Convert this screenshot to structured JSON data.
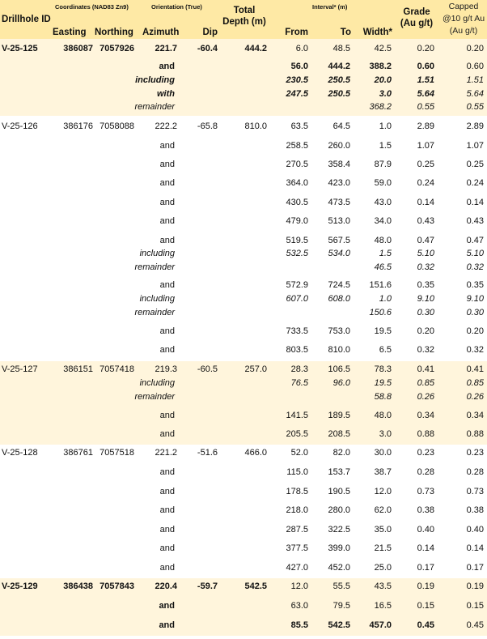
{
  "header": {
    "drillhole_id": "Drillhole ID",
    "coordinates": "Coordinates (NAD83 Zn9)",
    "orientation": "Orientation (True)",
    "total_depth_1": "Total",
    "total_depth_2": "Depth (m)",
    "interval": "Interval* (m)",
    "easting": "Easting",
    "northing": "Northing",
    "azimuth": "Azimuth",
    "dip": "Dip",
    "from": "From",
    "to": "To",
    "width": "Width*",
    "grade_1": "Grade",
    "grade_2": "(Au g/t)",
    "capped_1": "Capped",
    "capped_2": "@10 g/t Au",
    "capped_3": "(Au g/t)"
  },
  "colors": {
    "header_bg": "#fee9a5",
    "band_bg": "#fff5dc"
  },
  "rows": [
    {
      "id": "V-25-125",
      "easting": "386087",
      "northing": "7057926",
      "azimuth": "221.7",
      "dip": "-60.4",
      "depth": "444.2",
      "from": "6.0",
      "to": "48.5",
      "width": "42.5",
      "grade": "0.20",
      "capped": "0.20"
    },
    {
      "label": "and",
      "from": "56.0",
      "to": "444.2",
      "width": "388.2",
      "grade": "0.60",
      "capped": "0.60",
      "style": "bold"
    },
    {
      "label": "including",
      "from": "230.5",
      "to": "250.5",
      "width": "20.0",
      "grade": "1.51",
      "capped": "1.51",
      "style": "bold-italic"
    },
    {
      "label": "with",
      "from": "247.5",
      "to": "250.5",
      "width": "3.0",
      "grade": "5.64",
      "capped": "5.64",
      "style": "bold-italic"
    },
    {
      "label": "remainder",
      "width": "368.2",
      "grade": "0.55",
      "capped": "0.55",
      "style": "italic"
    },
    {
      "id": "V-25-126",
      "easting": "386176",
      "northing": "7058088",
      "azimuth": "222.2",
      "dip": "-65.8",
      "depth": "810.0",
      "from": "63.5",
      "to": "64.5",
      "width": "1.0",
      "grade": "2.89",
      "capped": "2.89"
    },
    {
      "label": "and",
      "from": "258.5",
      "to": "260.0",
      "width": "1.5",
      "grade": "1.07",
      "capped": "1.07"
    },
    {
      "label": "and",
      "from": "270.5",
      "to": "358.4",
      "width": "87.9",
      "grade": "0.25",
      "capped": "0.25"
    },
    {
      "label": "and",
      "from": "364.0",
      "to": "423.0",
      "width": "59.0",
      "grade": "0.24",
      "capped": "0.24"
    },
    {
      "label": "and",
      "from": "430.5",
      "to": "473.5",
      "width": "43.0",
      "grade": "0.14",
      "capped": "0.14"
    },
    {
      "label": "and",
      "from": "479.0",
      "to": "513.0",
      "width": "34.0",
      "grade": "0.43",
      "capped": "0.43"
    },
    {
      "label": "and",
      "from": "519.5",
      "to": "567.5",
      "width": "48.0",
      "grade": "0.47",
      "capped": "0.47"
    },
    {
      "label": "including",
      "from": "532.5",
      "to": "534.0",
      "width": "1.5",
      "grade": "5.10",
      "capped": "5.10",
      "style": "italic"
    },
    {
      "label": "remainder",
      "width": "46.5",
      "grade": "0.32",
      "capped": "0.32",
      "style": "italic"
    },
    {
      "label": "and",
      "from": "572.9",
      "to": "724.5",
      "width": "151.6",
      "grade": "0.35",
      "capped": "0.35"
    },
    {
      "label": "including",
      "from": "607.0",
      "to": "608.0",
      "width": "1.0",
      "grade": "9.10",
      "capped": "9.10",
      "style": "italic"
    },
    {
      "label": "remainder",
      "width": "150.6",
      "grade": "0.30",
      "capped": "0.30",
      "style": "italic"
    },
    {
      "label": "and",
      "from": "733.5",
      "to": "753.0",
      "width": "19.5",
      "grade": "0.20",
      "capped": "0.20"
    },
    {
      "label": "and",
      "from": "803.5",
      "to": "810.0",
      "width": "6.5",
      "grade": "0.32",
      "capped": "0.32"
    },
    {
      "id": "V-25-127",
      "easting": "386151",
      "northing": "7057418",
      "azimuth": "219.3",
      "dip": "-60.5",
      "depth": "257.0",
      "from": "28.3",
      "to": "106.5",
      "width": "78.3",
      "grade": "0.41",
      "capped": "0.41"
    },
    {
      "label": "including",
      "from": "76.5",
      "to": "96.0",
      "width": "19.5",
      "grade": "0.85",
      "capped": "0.85",
      "style": "italic"
    },
    {
      "label": "remainder",
      "width": "58.8",
      "grade": "0.26",
      "capped": "0.26",
      "style": "italic"
    },
    {
      "label": "and",
      "from": "141.5",
      "to": "189.5",
      "width": "48.0",
      "grade": "0.34",
      "capped": "0.34"
    },
    {
      "label": "and",
      "from": "205.5",
      "to": "208.5",
      "width": "3.0",
      "grade": "0.88",
      "capped": "0.88"
    },
    {
      "id": "V-25-128",
      "easting": "386761",
      "northing": "7057518",
      "azimuth": "221.2",
      "dip": "-51.6",
      "depth": "466.0",
      "from": "52.0",
      "to": "82.0",
      "width": "30.0",
      "grade": "0.23",
      "capped": "0.23"
    },
    {
      "label": "and",
      "from": "115.0",
      "to": "153.7",
      "width": "38.7",
      "grade": "0.28",
      "capped": "0.28"
    },
    {
      "label": "and",
      "from": "178.5",
      "to": "190.5",
      "width": "12.0",
      "grade": "0.73",
      "capped": "0.73"
    },
    {
      "label": "and",
      "from": "218.0",
      "to": "280.0",
      "width": "62.0",
      "grade": "0.38",
      "capped": "0.38"
    },
    {
      "label": "and",
      "from": "287.5",
      "to": "322.5",
      "width": "35.0",
      "grade": "0.40",
      "capped": "0.40"
    },
    {
      "label": "and",
      "from": "377.5",
      "to": "399.0",
      "width": "21.5",
      "grade": "0.14",
      "capped": "0.14"
    },
    {
      "label": "and",
      "from": "427.0",
      "to": "452.0",
      "width": "25.0",
      "grade": "0.17",
      "capped": "0.17"
    },
    {
      "id": "V-25-129",
      "easting": "386438",
      "northing": "7057843",
      "azimuth": "220.4",
      "dip": "-59.7",
      "depth": "542.5",
      "from": "12.0",
      "to": "55.5",
      "width": "43.5",
      "grade": "0.19",
      "capped": "0.19"
    },
    {
      "label": "and",
      "from": "63.0",
      "to": "79.5",
      "width": "16.5",
      "grade": "0.15",
      "capped": "0.15"
    },
    {
      "label": "and",
      "from": "85.5",
      "to": "542.5",
      "width": "457.0",
      "grade": "0.45",
      "capped": "0.45",
      "style": "bold"
    }
  ]
}
